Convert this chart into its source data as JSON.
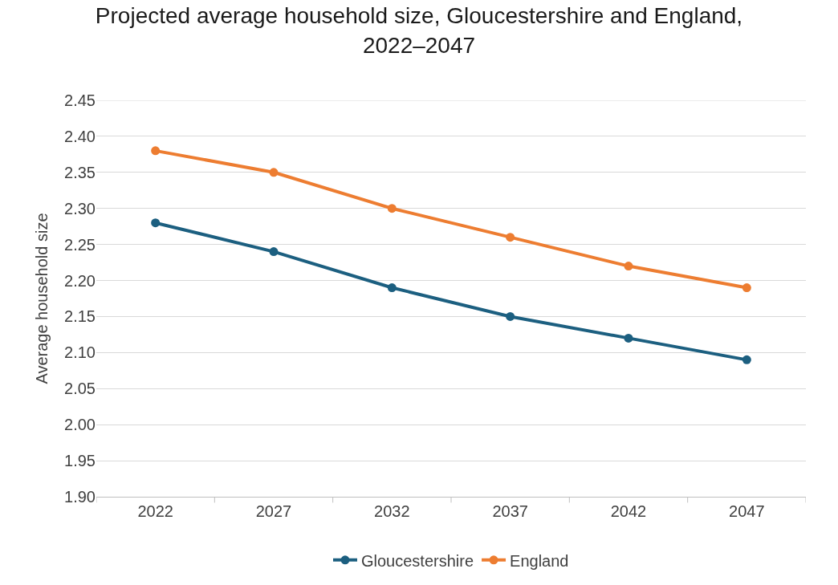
{
  "chart_data": {
    "type": "line",
    "title": "Projected average household size, Gloucestershire and England, 2022–2047",
    "ylabel": "Average household size",
    "categories": [
      "2022",
      "2027",
      "2032",
      "2037",
      "2042",
      "2047"
    ],
    "series": [
      {
        "name": "Gloucestershire",
        "color": "#1c5f80",
        "values": [
          2.28,
          2.24,
          2.19,
          2.15,
          2.12,
          2.09
        ]
      },
      {
        "name": "England",
        "color": "#ed7d31",
        "values": [
          2.38,
          2.35,
          2.3,
          2.26,
          2.22,
          2.19
        ]
      }
    ],
    "ylim": [
      1.9,
      2.45
    ],
    "yticks": [
      {
        "value": 1.9,
        "label": "1.90"
      },
      {
        "value": 1.95,
        "label": "1.95"
      },
      {
        "value": 2.0,
        "label": "2.00"
      },
      {
        "value": 2.05,
        "label": "2.05"
      },
      {
        "value": 2.1,
        "label": "2.10"
      },
      {
        "value": 2.15,
        "label": "2.15"
      },
      {
        "value": 2.2,
        "label": "2.20"
      },
      {
        "value": 2.25,
        "label": "2.25"
      },
      {
        "value": 2.3,
        "label": "2.30"
      },
      {
        "value": 2.35,
        "label": "2.35"
      },
      {
        "value": 2.4,
        "label": "2.40"
      },
      {
        "value": 2.45,
        "label": "2.45"
      }
    ],
    "grid": "y",
    "legend": "bottom",
    "marker": "circle",
    "line_style": "solid"
  }
}
